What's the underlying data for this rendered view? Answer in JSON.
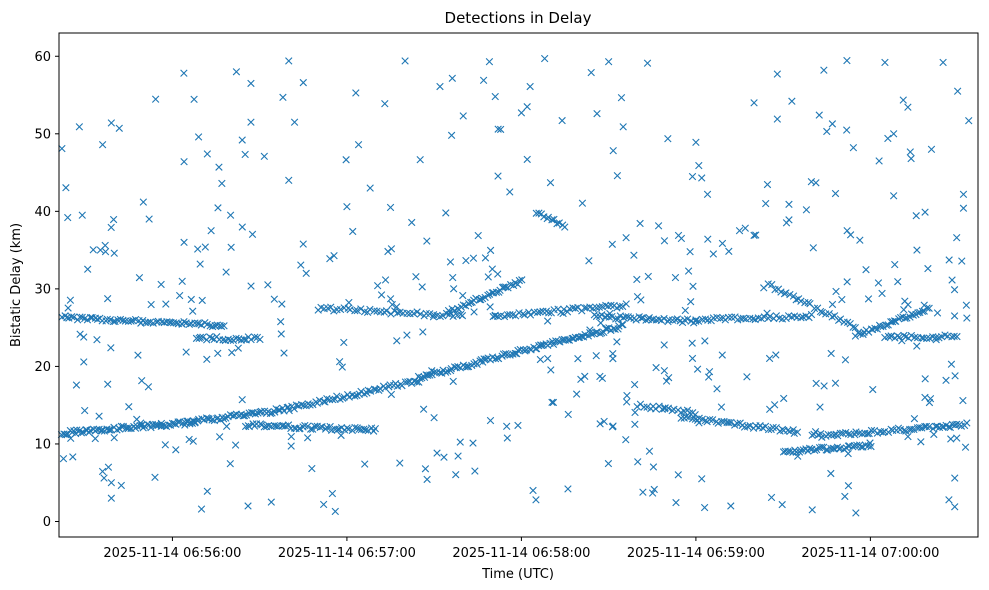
{
  "chart_data": {
    "type": "scatter",
    "title": "Detections in Delay",
    "xlabel": "Time (UTC)",
    "ylabel": "Bistatic Delay (km)",
    "marker": "x",
    "color": "#1f77b4",
    "grid": false,
    "xlim": [
      "2025-11-14 06:55:21",
      "2025-11-14 07:00:37"
    ],
    "ylim": [
      -2,
      63
    ],
    "x_ticks": [
      "2025-11-14 06:56:00",
      "2025-11-14 06:57:00",
      "2025-11-14 06:58:00",
      "2025-11-14 06:59:00",
      "2025-11-14 07:00:00"
    ],
    "y_ticks": [
      0,
      10,
      20,
      30,
      40,
      50,
      60
    ],
    "series": [
      {
        "name": "",
        "tracks": [
          {
            "start": "2025-11-14 06:55:22",
            "end": "2025-11-14 06:56:08",
            "y0": 11.4,
            "y1": 12.8,
            "count": 70
          },
          {
            "start": "2025-11-14 06:56:05",
            "end": "2025-11-14 06:56:40",
            "y0": 12.8,
            "y1": 14.5,
            "count": 50
          },
          {
            "start": "2025-11-14 06:56:40",
            "end": "2025-11-14 06:57:25",
            "y0": 14.6,
            "y1": 18.2,
            "count": 55
          },
          {
            "start": "2025-11-14 06:57:25",
            "end": "2025-11-14 06:58:05",
            "y0": 18.5,
            "y1": 22.5,
            "count": 55
          },
          {
            "start": "2025-11-14 06:58:05",
            "end": "2025-11-14 06:58:35",
            "y0": 22.5,
            "y1": 25.2,
            "count": 45
          },
          {
            "start": "2025-11-14 06:55:22",
            "end": "2025-11-14 06:56:18",
            "y0": 26.3,
            "y1": 25.3,
            "count": 65
          },
          {
            "start": "2025-11-14 06:56:08",
            "end": "2025-11-14 06:56:30",
            "y0": 23.6,
            "y1": 23.6,
            "count": 25
          },
          {
            "start": "2025-11-14 06:56:25",
            "end": "2025-11-14 06:57:10",
            "y0": 12.4,
            "y1": 11.8,
            "count": 55
          },
          {
            "start": "2025-11-14 06:56:50",
            "end": "2025-11-14 06:57:40",
            "y0": 27.5,
            "y1": 26.5,
            "count": 45
          },
          {
            "start": "2025-11-14 06:57:35",
            "end": "2025-11-14 06:58:00",
            "y0": 27.0,
            "y1": 31.0,
            "count": 35
          },
          {
            "start": "2025-11-14 06:57:50",
            "end": "2025-11-14 06:58:35",
            "y0": 26.5,
            "y1": 27.8,
            "count": 45
          },
          {
            "start": "2025-11-14 06:58:25",
            "end": "2025-11-14 06:59:00",
            "y0": 26.5,
            "y1": 25.8,
            "count": 40
          },
          {
            "start": "2025-11-14 06:58:05",
            "end": "2025-11-14 06:58:15",
            "y0": 40.0,
            "y1": 38.0,
            "count": 12
          },
          {
            "start": "2025-11-14 06:58:40",
            "end": "2025-11-14 06:59:00",
            "y0": 15.0,
            "y1": 14.0,
            "count": 20
          },
          {
            "start": "2025-11-14 06:58:55",
            "end": "2025-11-14 06:59:35",
            "y0": 13.5,
            "y1": 11.5,
            "count": 45
          },
          {
            "start": "2025-11-14 06:59:00",
            "end": "2025-11-14 06:59:40",
            "y0": 26.0,
            "y1": 26.5,
            "count": 40
          },
          {
            "start": "2025-11-14 06:59:30",
            "end": "2025-11-14 07:00:00",
            "y0": 9.0,
            "y1": 9.8,
            "count": 40
          },
          {
            "start": "2025-11-14 06:59:40",
            "end": "2025-11-14 07:00:33",
            "y0": 11.0,
            "y1": 12.5,
            "count": 60
          },
          {
            "start": "2025-11-14 06:59:25",
            "end": "2025-11-14 06:59:55",
            "y0": 30.5,
            "y1": 25.0,
            "count": 30
          },
          {
            "start": "2025-11-14 06:59:55",
            "end": "2025-11-14 07:00:20",
            "y0": 24.0,
            "y1": 27.5,
            "count": 35
          },
          {
            "start": "2025-11-14 07:00:05",
            "end": "2025-11-14 07:00:30",
            "y0": 23.8,
            "y1": 23.8,
            "count": 25
          }
        ],
        "scattered": [
          [
            "2025-11-14 06:55:22",
            48.1
          ],
          [
            "2025-11-14 06:55:24",
            39.2
          ],
          [
            "2025-11-14 06:55:28",
            50.9
          ],
          [
            "2025-11-14 06:55:29",
            39.5
          ],
          [
            "2025-11-14 06:55:36",
            48.6
          ],
          [
            "2025-11-14 06:55:39",
            51.4
          ],
          [
            "2025-11-14 06:55:37",
            34.8
          ],
          [
            "2025-11-14 06:55:40",
            34.6
          ],
          [
            "2025-11-14 06:55:27",
            17.6
          ],
          [
            "2025-11-14 06:55:38",
            7.0
          ],
          [
            "2025-11-14 06:55:39",
            5.0
          ],
          [
            "2025-11-14 06:55:39",
            3.0
          ],
          [
            "2025-11-14 06:55:45",
            14.8
          ],
          [
            "2025-11-14 06:55:50",
            41.2
          ],
          [
            "2025-11-14 06:55:52",
            39.0
          ],
          [
            "2025-11-14 06:55:54",
            5.7
          ],
          [
            "2025-11-14 06:56:04",
            46.4
          ],
          [
            "2025-11-14 06:56:04",
            36.0
          ],
          [
            "2025-11-14 06:56:09",
            49.6
          ],
          [
            "2025-11-14 06:56:12",
            47.4
          ],
          [
            "2025-11-14 06:56:10",
            1.6
          ],
          [
            "2025-11-14 06:56:12",
            3.9
          ],
          [
            "2025-11-14 06:56:16",
            45.7
          ],
          [
            "2025-11-14 06:56:17",
            43.6
          ],
          [
            "2025-11-14 06:56:20",
            39.5
          ],
          [
            "2025-11-14 06:56:22",
            58.0
          ],
          [
            "2025-11-14 06:56:24",
            49.2
          ],
          [
            "2025-11-14 06:56:27",
            56.5
          ],
          [
            "2025-11-14 06:56:27",
            51.5
          ],
          [
            "2025-11-14 06:56:26",
            2.0
          ],
          [
            "2025-11-14 06:56:34",
            2.5
          ],
          [
            "2025-11-14 06:56:38",
            54.7
          ],
          [
            "2025-11-14 06:56:40",
            59.4
          ],
          [
            "2025-11-14 06:56:40",
            44.0
          ],
          [
            "2025-11-14 06:56:42",
            51.5
          ],
          [
            "2025-11-14 06:56:45",
            56.6
          ],
          [
            "2025-11-14 06:56:46",
            32.0
          ],
          [
            "2025-11-14 06:56:52",
            2.2
          ],
          [
            "2025-11-14 06:56:55",
            3.6
          ],
          [
            "2025-11-14 06:56:56",
            1.3
          ],
          [
            "2025-11-14 06:57:00",
            40.6
          ],
          [
            "2025-11-14 06:57:02",
            37.4
          ],
          [
            "2025-11-14 06:57:04",
            48.6
          ],
          [
            "2025-11-14 06:57:08",
            43.0
          ],
          [
            "2025-11-14 06:57:15",
            40.5
          ],
          [
            "2025-11-14 06:57:20",
            59.4
          ],
          [
            "2025-11-14 06:57:27",
            6.8
          ],
          [
            "2025-11-14 06:57:32",
            56.1
          ],
          [
            "2025-11-14 06:57:34",
            39.8
          ],
          [
            "2025-11-14 06:57:36",
            49.8
          ],
          [
            "2025-11-14 06:57:40",
            52.3
          ],
          [
            "2025-11-14 06:57:44",
            6.5
          ],
          [
            "2025-11-14 06:57:47",
            56.9
          ],
          [
            "2025-11-14 06:57:49",
            59.3
          ],
          [
            "2025-11-14 06:57:51",
            54.8
          ],
          [
            "2025-11-14 06:57:52",
            50.6
          ],
          [
            "2025-11-14 06:57:56",
            42.5
          ],
          [
            "2025-11-14 06:58:00",
            52.7
          ],
          [
            "2025-11-14 06:58:03",
            56.1
          ],
          [
            "2025-11-14 06:58:04",
            4.0
          ],
          [
            "2025-11-14 06:58:05",
            2.8
          ],
          [
            "2025-11-14 06:58:02",
            46.7
          ],
          [
            "2025-11-14 06:58:08",
            59.7
          ],
          [
            "2025-11-14 06:58:10",
            43.7
          ],
          [
            "2025-11-14 06:58:14",
            51.7
          ],
          [
            "2025-11-14 06:58:16",
            4.2
          ],
          [
            "2025-11-14 06:58:24",
            57.9
          ],
          [
            "2025-11-14 06:58:26",
            52.6
          ],
          [
            "2025-11-14 06:58:30",
            59.3
          ],
          [
            "2025-11-14 06:58:33",
            44.6
          ],
          [
            "2025-11-14 06:58:35",
            50.9
          ],
          [
            "2025-11-14 06:58:36",
            36.6
          ],
          [
            "2025-11-14 06:58:40",
            7.7
          ],
          [
            "2025-11-14 06:59:00",
            48.9
          ],
          [
            "2025-11-14 06:59:01",
            45.9
          ],
          [
            "2025-11-14 06:59:02",
            44.3
          ],
          [
            "2025-11-14 06:59:04",
            42.2
          ],
          [
            "2025-11-14 06:59:02",
            5.5
          ],
          [
            "2025-11-14 06:59:03",
            1.8
          ],
          [
            "2025-11-14 06:59:12",
            2.0
          ],
          [
            "2025-11-14 06:59:15",
            37.5
          ],
          [
            "2025-11-14 06:59:20",
            54.0
          ],
          [
            "2025-11-14 06:59:24",
            41.0
          ],
          [
            "2025-11-14 06:59:28",
            57.7
          ],
          [
            "2025-11-14 06:59:28",
            51.9
          ],
          [
            "2025-11-14 06:59:32",
            40.9
          ],
          [
            "2025-11-14 06:59:32",
            38.9
          ],
          [
            "2025-11-14 06:59:33",
            54.2
          ],
          [
            "2025-11-14 06:59:26",
            3.1
          ],
          [
            "2025-11-14 06:59:38",
            40.2
          ],
          [
            "2025-11-14 06:59:44",
            58.2
          ],
          [
            "2025-11-14 06:59:45",
            50.3
          ],
          [
            "2025-11-14 06:59:48",
            42.3
          ],
          [
            "2025-11-14 06:59:52",
            37.5
          ],
          [
            "2025-11-14 06:59:55",
            1.1
          ],
          [
            "2025-11-14 06:59:40",
            1.5
          ],
          [
            "2025-11-14 07:00:05",
            59.2
          ],
          [
            "2025-11-14 07:00:06",
            49.4
          ],
          [
            "2025-11-14 07:00:08",
            50.0
          ],
          [
            "2025-11-14 07:00:08",
            42.0
          ],
          [
            "2025-11-14 07:00:14",
            46.8
          ],
          [
            "2025-11-14 07:00:16",
            35.0
          ],
          [
            "2025-11-14 07:00:21",
            48.0
          ],
          [
            "2025-11-14 07:00:25",
            59.2
          ],
          [
            "2025-11-14 07:00:27",
            2.8
          ],
          [
            "2025-11-14 07:00:30",
            55.5
          ],
          [
            "2025-11-14 07:00:32",
            42.2
          ],
          [
            "2025-11-14 07:00:32",
            40.4
          ],
          [
            "2025-11-14 07:00:29",
            1.9
          ],
          [
            "2025-11-14 07:00:29",
            5.6
          ],
          [
            "2025-11-14 07:00:26",
            18.2
          ],
          [
            "2025-11-14 07:00:33",
            27.9
          ],
          [
            "2025-11-14 07:00:03",
            46.5
          ],
          [
            "2025-11-14 06:58:58",
            34.8
          ],
          [
            "2025-11-14 06:59:06",
            34.5
          ],
          [
            "2025-11-14 06:59:20",
            36.9
          ]
        ],
        "random_fill_count": 320
      }
    ]
  }
}
